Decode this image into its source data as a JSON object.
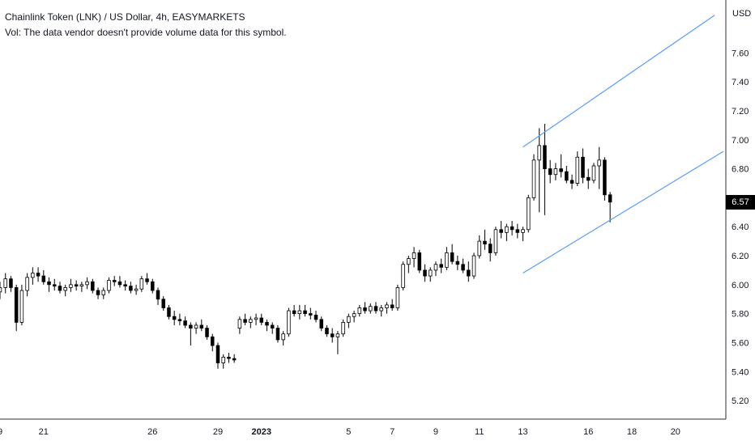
{
  "header": {
    "title": "Chainlink Token (LNK) / US Dollar, 4h, EASYMARKETS",
    "volume_note": "Vol: The data vendor doesn't provide volume data for this symbol."
  },
  "axis": {
    "currency": "USD",
    "last_price_label": "6.57"
  },
  "colors": {
    "candle_up_body": "#ffffff",
    "candle_down_body": "#000000",
    "candle_outline": "#000000",
    "channel_line": "#5b9cf6",
    "axis_line": "#2a2e39"
  },
  "chart_data": {
    "type": "candlestick",
    "symbol": "Chainlink Token (LNK) / US Dollar",
    "interval": "4h",
    "ylim": [
      5.1,
      7.92
    ],
    "y_ticks": [
      "5.20",
      "5.40",
      "5.60",
      "5.80",
      "6.00",
      "6.20",
      "6.40",
      "6.60",
      "6.80",
      "7.00",
      "7.20",
      "7.40",
      "7.60"
    ],
    "x_ticks": [
      {
        "label": "9",
        "t": -1.0
      },
      {
        "label": "21",
        "t": 1.0
      },
      {
        "label": "26",
        "t": 6.0
      },
      {
        "label": "29",
        "t": 9.0
      },
      {
        "label": "2023",
        "t": 11.0
      },
      {
        "label": "5",
        "t": 15.0
      },
      {
        "label": "7",
        "t": 17.0
      },
      {
        "label": "9",
        "t": 19.0
      },
      {
        "label": "11",
        "t": 21.0
      },
      {
        "label": "13",
        "t": 23.0
      },
      {
        "label": "16",
        "t": 26.0
      },
      {
        "label": "18",
        "t": 28.0
      },
      {
        "label": "20",
        "t": 30.0
      }
    ],
    "x_range": [
      -1.0,
      32.2
    ],
    "candles_window": [
      -1.0,
      27.0
    ],
    "candles": [
      [
        5.95,
        6.02,
        5.9,
        5.98
      ],
      [
        5.98,
        6.08,
        5.94,
        6.04
      ],
      [
        6.04,
        6.06,
        5.95,
        5.98
      ],
      [
        5.98,
        6.0,
        5.68,
        5.74
      ],
      [
        5.74,
        6.0,
        5.72,
        5.96
      ],
      [
        5.96,
        6.08,
        5.92,
        6.05
      ],
      [
        6.05,
        6.12,
        6.0,
        6.08
      ],
      [
        6.08,
        6.12,
        6.02,
        6.06
      ],
      [
        6.06,
        6.1,
        6.0,
        6.02
      ],
      [
        6.02,
        6.05,
        5.95,
        6.0
      ],
      [
        6.0,
        6.04,
        5.96,
        5.99
      ],
      [
        5.99,
        6.02,
        5.94,
        5.96
      ],
      [
        5.96,
        6.0,
        5.92,
        5.98
      ],
      [
        5.98,
        6.04,
        5.95,
        6.0
      ],
      [
        6.0,
        6.03,
        5.96,
        5.99
      ],
      [
        5.99,
        6.02,
        5.95,
        6.0
      ],
      [
        6.0,
        6.05,
        5.97,
        6.02
      ],
      [
        6.02,
        6.04,
        5.94,
        5.96
      ],
      [
        5.96,
        5.98,
        5.9,
        5.93
      ],
      [
        5.93,
        5.98,
        5.9,
        5.96
      ],
      [
        5.96,
        6.05,
        5.94,
        6.03
      ],
      [
        6.03,
        6.06,
        5.99,
        6.02
      ],
      [
        6.02,
        6.06,
        5.98,
        6.0
      ],
      [
        6.0,
        6.03,
        5.96,
        5.99
      ],
      [
        5.99,
        6.02,
        5.94,
        5.96
      ],
      [
        5.96,
        6.0,
        5.93,
        5.97
      ],
      [
        5.97,
        6.06,
        5.95,
        6.04
      ],
      [
        6.04,
        6.08,
        6.0,
        6.02
      ],
      [
        6.02,
        6.04,
        5.94,
        5.96
      ],
      [
        5.96,
        5.98,
        5.86,
        5.9
      ],
      [
        5.9,
        5.92,
        5.82,
        5.84
      ],
      [
        5.84,
        5.86,
        5.76,
        5.78
      ],
      [
        5.78,
        5.82,
        5.72,
        5.76
      ],
      [
        5.76,
        5.8,
        5.72,
        5.75
      ],
      [
        5.75,
        5.78,
        5.7,
        5.72
      ],
      [
        5.72,
        5.74,
        5.58,
        5.7
      ],
      [
        5.7,
        5.74,
        5.66,
        5.72
      ],
      [
        5.72,
        5.76,
        5.68,
        5.7
      ],
      [
        5.7,
        5.72,
        5.62,
        5.64
      ],
      [
        5.64,
        5.66,
        5.54,
        5.58
      ],
      [
        5.58,
        5.6,
        5.42,
        5.46
      ],
      [
        5.46,
        5.52,
        5.42,
        5.5
      ],
      [
        5.5,
        5.53,
        5.46,
        5.49
      ],
      [
        5.49,
        5.52,
        5.46,
        5.48
      ],
      [
        5.7,
        5.78,
        5.66,
        5.76
      ],
      [
        5.76,
        5.8,
        5.72,
        5.74
      ],
      [
        5.74,
        5.78,
        5.7,
        5.76
      ],
      [
        5.76,
        5.8,
        5.72,
        5.77
      ],
      [
        5.77,
        5.8,
        5.72,
        5.74
      ],
      [
        5.74,
        5.76,
        5.68,
        5.72
      ],
      [
        5.72,
        5.74,
        5.66,
        5.7
      ],
      [
        5.7,
        5.72,
        5.6,
        5.62
      ],
      [
        5.62,
        5.68,
        5.58,
        5.66
      ],
      [
        5.66,
        5.84,
        5.64,
        5.82
      ],
      [
        5.82,
        5.86,
        5.78,
        5.8
      ],
      [
        5.8,
        5.86,
        5.76,
        5.82
      ],
      [
        5.82,
        5.86,
        5.78,
        5.8
      ],
      [
        5.8,
        5.84,
        5.76,
        5.79
      ],
      [
        5.79,
        5.82,
        5.74,
        5.76
      ],
      [
        5.76,
        5.78,
        5.68,
        5.7
      ],
      [
        5.7,
        5.72,
        5.64,
        5.66
      ],
      [
        5.66,
        5.7,
        5.6,
        5.64
      ],
      [
        5.64,
        5.68,
        5.52,
        5.66
      ],
      [
        5.66,
        5.76,
        5.64,
        5.74
      ],
      [
        5.74,
        5.8,
        5.7,
        5.78
      ],
      [
        5.78,
        5.82,
        5.74,
        5.8
      ],
      [
        5.8,
        5.86,
        5.78,
        5.84
      ],
      [
        5.84,
        5.88,
        5.8,
        5.82
      ],
      [
        5.82,
        5.87,
        5.8,
        5.85
      ],
      [
        5.85,
        5.88,
        5.8,
        5.82
      ],
      [
        5.82,
        5.86,
        5.78,
        5.84
      ],
      [
        5.84,
        5.88,
        5.8,
        5.86
      ],
      [
        5.86,
        5.9,
        5.82,
        5.84
      ],
      [
        5.84,
        6.0,
        5.82,
        5.98
      ],
      [
        5.98,
        6.16,
        5.96,
        6.14
      ],
      [
        6.14,
        6.2,
        6.08,
        6.18
      ],
      [
        6.18,
        6.26,
        6.12,
        6.22
      ],
      [
        6.22,
        6.24,
        6.08,
        6.1
      ],
      [
        6.1,
        6.14,
        6.02,
        6.06
      ],
      [
        6.06,
        6.12,
        6.02,
        6.1
      ],
      [
        6.1,
        6.16,
        6.06,
        6.14
      ],
      [
        6.14,
        6.18,
        6.08,
        6.12
      ],
      [
        6.12,
        6.26,
        6.1,
        6.22
      ],
      [
        6.22,
        6.28,
        6.14,
        6.16
      ],
      [
        6.16,
        6.2,
        6.1,
        6.14
      ],
      [
        6.14,
        6.18,
        6.08,
        6.1
      ],
      [
        6.1,
        6.16,
        6.02,
        6.06
      ],
      [
        6.06,
        6.22,
        6.04,
        6.2
      ],
      [
        6.2,
        6.34,
        6.18,
        6.3
      ],
      [
        6.3,
        6.38,
        6.24,
        6.28
      ],
      [
        6.28,
        6.32,
        6.16,
        6.22
      ],
      [
        6.22,
        6.4,
        6.2,
        6.38
      ],
      [
        6.38,
        6.44,
        6.32,
        6.36
      ],
      [
        6.36,
        6.42,
        6.3,
        6.4
      ],
      [
        6.4,
        6.44,
        6.34,
        6.38
      ],
      [
        6.38,
        6.42,
        6.32,
        6.36
      ],
      [
        6.36,
        6.4,
        6.3,
        6.38
      ],
      [
        6.38,
        6.62,
        6.36,
        6.6
      ],
      [
        6.6,
        6.9,
        6.58,
        6.86
      ],
      [
        6.86,
        7.08,
        6.5,
        6.96
      ],
      [
        6.96,
        7.11,
        6.48,
        6.8
      ],
      [
        6.8,
        6.86,
        6.7,
        6.76
      ],
      [
        6.76,
        6.84,
        6.72,
        6.8
      ],
      [
        6.8,
        6.9,
        6.74,
        6.78
      ],
      [
        6.78,
        6.82,
        6.7,
        6.72
      ],
      [
        6.72,
        6.76,
        6.66,
        6.7
      ],
      [
        6.7,
        6.92,
        6.68,
        6.88
      ],
      [
        6.88,
        6.94,
        6.7,
        6.74
      ],
      [
        6.74,
        6.8,
        6.66,
        6.72
      ],
      [
        6.72,
        6.84,
        6.7,
        6.82
      ],
      [
        6.82,
        6.95,
        6.66,
        6.86
      ],
      [
        6.86,
        6.88,
        6.58,
        6.62
      ],
      [
        6.62,
        6.64,
        6.43,
        6.57
      ]
    ],
    "channel_lines": [
      {
        "name": "upper",
        "from": {
          "t": 23.0,
          "price": 6.95
        },
        "to": {
          "t": 31.8,
          "price": 7.86
        }
      },
      {
        "name": "lower",
        "from": {
          "t": 23.0,
          "price": 6.08
        },
        "to": {
          "t": 32.2,
          "price": 6.92
        }
      }
    ],
    "last_price": 6.57
  }
}
